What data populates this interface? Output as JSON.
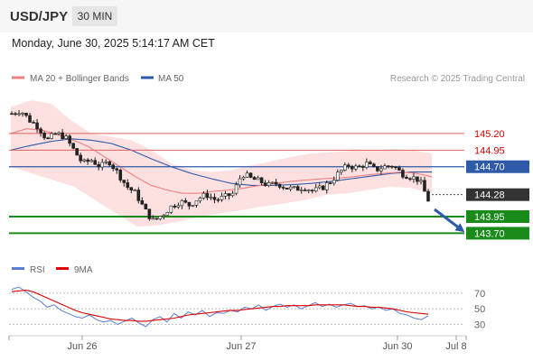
{
  "header": {
    "symbol": "USD/JPY",
    "timeframe_label": "30 MIN"
  },
  "timestamp": "Monday, June 30, 2025 5:14:17 AM CET",
  "colors": {
    "ma20": "#f08080",
    "ma50": "#2e5aa8",
    "bollinger_fill": "#fde0e0",
    "resistance": "#e06060",
    "pivot": "#2e5aa8",
    "support": "#1a8a1a",
    "current": "#333333",
    "rsi": "#5b7fd6",
    "rsi_ma": "#e00000",
    "arrow": "#2e5aa8"
  },
  "chart_data": [
    {
      "type": "candlestick",
      "legend": [
        {
          "label": "MA 20 + Bollinger Bands",
          "color": "#f08080"
        },
        {
          "label": "MA 50",
          "color": "#2e5aa8"
        }
      ],
      "credit": "Research © 2025 Trading Central",
      "x_ticks": [
        "Jun 26",
        "Jun 27",
        "Jun 30",
        "Jul 8"
      ],
      "ylim": [
        143.38,
        145.85
      ],
      "levels": [
        {
          "value": 145.2,
          "label": "145.20",
          "kind": "resistance"
        },
        {
          "value": 144.95,
          "label": "144.95",
          "kind": "resistance"
        },
        {
          "value": 144.7,
          "label": "144.70",
          "kind": "pivot"
        },
        {
          "value": 144.28,
          "label": "144.28",
          "kind": "current"
        },
        {
          "value": 143.95,
          "label": "143.95",
          "kind": "support"
        },
        {
          "value": 143.7,
          "label": "143.70",
          "kind": "support"
        }
      ],
      "price_path": [
        145.5,
        145.55,
        145.4,
        145.3,
        145.1,
        145.2,
        145.15,
        144.95,
        144.75,
        144.8,
        144.7,
        144.78,
        144.6,
        144.4,
        144.3,
        144.05,
        143.88,
        143.98,
        144.1,
        144.18,
        144.12,
        144.22,
        144.28,
        144.2,
        144.24,
        144.3,
        144.6,
        144.52,
        144.48,
        144.42,
        144.45,
        144.38,
        144.36,
        144.4,
        144.33,
        144.38,
        144.48,
        144.62,
        144.72,
        144.68,
        144.75,
        144.65,
        144.7,
        144.72,
        144.6,
        144.55,
        144.5,
        144.2
      ],
      "ma20": [
        145.2,
        145.27,
        145.25,
        145.18,
        145.1,
        145.0,
        144.85,
        144.7,
        144.55,
        144.42,
        144.35,
        144.3,
        144.3,
        144.33,
        144.35,
        144.38,
        144.42,
        144.45,
        144.48,
        144.5,
        144.52,
        144.53,
        144.55,
        144.58,
        144.6,
        144.62,
        144.6,
        144.55
      ],
      "bollinger_upper": [
        145.6,
        145.7,
        145.65,
        145.4,
        145.2,
        145.15,
        145.1,
        144.95,
        144.75,
        144.65,
        144.62,
        144.65,
        144.72,
        144.78,
        144.85,
        144.9,
        144.92,
        144.94,
        144.95,
        144.96,
        144.95,
        144.9
      ],
      "bollinger_lower": [
        144.7,
        144.6,
        144.5,
        144.4,
        144.2,
        144.0,
        143.8,
        143.82,
        143.88,
        143.95,
        144.0,
        144.05,
        144.1,
        144.15,
        144.2,
        144.28,
        144.3,
        144.35,
        144.4,
        144.38,
        144.3
      ],
      "ma50": [
        144.95,
        145.02,
        145.08,
        145.12,
        145.1,
        145.05,
        144.95,
        144.82,
        144.7,
        144.6,
        144.52,
        144.45,
        144.42,
        144.42,
        144.43,
        144.45,
        144.48,
        144.52,
        144.56,
        144.6,
        144.62,
        144.62
      ],
      "forecast_target": 143.7
    },
    {
      "type": "line",
      "legend": [
        {
          "label": "RSI",
          "color": "#5b7fd6"
        },
        {
          "label": "9MA",
          "color": "#e00000"
        }
      ],
      "ylim": [
        20,
        85
      ],
      "y_ticks": [
        70,
        50,
        30
      ],
      "rsi": [
        75,
        78,
        72,
        65,
        60,
        52,
        55,
        48,
        44,
        40,
        38,
        42,
        36,
        33,
        35,
        30,
        34,
        38,
        32,
        27,
        36,
        40,
        33,
        44,
        38,
        46,
        42,
        48,
        40,
        45,
        44,
        48,
        46,
        52,
        50,
        55,
        48,
        53,
        56,
        52,
        55,
        50,
        54,
        58,
        53,
        56,
        52,
        55,
        57,
        53,
        54,
        50,
        52,
        48,
        50,
        44,
        42,
        38,
        36,
        41
      ],
      "rsi_ma": [
        72,
        73,
        74,
        72,
        68,
        64,
        60,
        56,
        52,
        48,
        45,
        43,
        41,
        39,
        37,
        36,
        35,
        35,
        34,
        34,
        35,
        36,
        37,
        38,
        40,
        42,
        43,
        44,
        45,
        46,
        47,
        48,
        48,
        49,
        50,
        51,
        52,
        53,
        53,
        54,
        54,
        54,
        54,
        55,
        55,
        55,
        55,
        55,
        54,
        53,
        53,
        52,
        52,
        51,
        50,
        48,
        46,
        45,
        44,
        43
      ]
    }
  ]
}
